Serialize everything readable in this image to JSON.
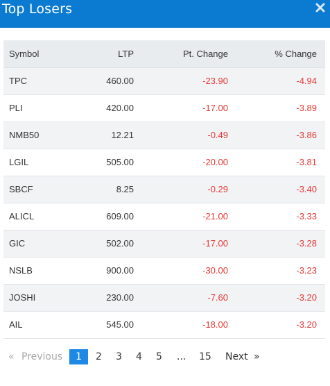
{
  "modal": {
    "title": "Top Losers",
    "close_icon": "close-icon"
  },
  "table": {
    "headers": {
      "symbol": "Symbol",
      "ltp": "LTP",
      "pt_change": "Pt. Change",
      "pct_change": "% Change"
    },
    "rows": [
      {
        "symbol": "TPC",
        "ltp": "460.00",
        "pt_change": "-23.90",
        "pct_change": "-4.94"
      },
      {
        "symbol": "PLI",
        "ltp": "420.00",
        "pt_change": "-17.00",
        "pct_change": "-3.89"
      },
      {
        "symbol": "NMB50",
        "ltp": "12.21",
        "pt_change": "-0.49",
        "pct_change": "-3.86"
      },
      {
        "symbol": "LGIL",
        "ltp": "505.00",
        "pt_change": "-20.00",
        "pct_change": "-3.81"
      },
      {
        "symbol": "SBCF",
        "ltp": "8.25",
        "pt_change": "-0.29",
        "pct_change": "-3.40"
      },
      {
        "symbol": "ALICL",
        "ltp": "609.00",
        "pt_change": "-21.00",
        "pct_change": "-3.33"
      },
      {
        "symbol": "GIC",
        "ltp": "502.00",
        "pt_change": "-17.00",
        "pct_change": "-3.28"
      },
      {
        "symbol": "NSLB",
        "ltp": "900.00",
        "pt_change": "-30.00",
        "pct_change": "-3.23"
      },
      {
        "symbol": "JOSHI",
        "ltp": "230.00",
        "pt_change": "-7.60",
        "pct_change": "-3.20"
      },
      {
        "symbol": "AIL",
        "ltp": "545.00",
        "pt_change": "-18.00",
        "pct_change": "-3.20"
      }
    ]
  },
  "pagination": {
    "prev_arrow": "«",
    "previous": "Previous",
    "pages": [
      "1",
      "2",
      "3",
      "4",
      "5"
    ],
    "ellipsis": "...",
    "last_page": "15",
    "next": "Next",
    "next_arrow": "»",
    "current_page": "1"
  },
  "colors": {
    "header_bg": "#0b7ad1",
    "negative": "#e53935",
    "active_page": "#1e88e5"
  }
}
